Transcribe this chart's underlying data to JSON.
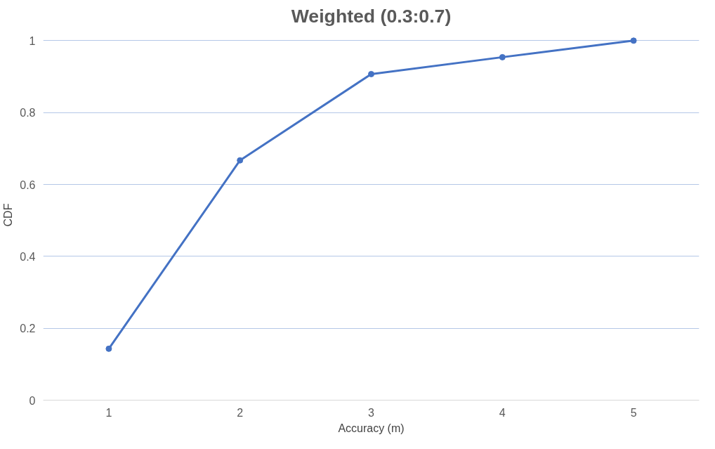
{
  "chart_data": {
    "type": "line",
    "title": "Weighted (0.3:0.7)",
    "xlabel": "Accuracy (m)",
    "ylabel": "CDF",
    "categories": [
      "1",
      "2",
      "3",
      "4",
      "5"
    ],
    "series": [
      {
        "color": "#4472c4",
        "values": [
          0.143,
          0.667,
          0.907,
          0.954,
          1.0
        ]
      }
    ],
    "ylim": [
      0,
      1
    ],
    "yticks": [
      0,
      0.2,
      0.4,
      0.6,
      0.8,
      1
    ],
    "grid": "y",
    "marker": "circle",
    "line_style": "solid"
  }
}
